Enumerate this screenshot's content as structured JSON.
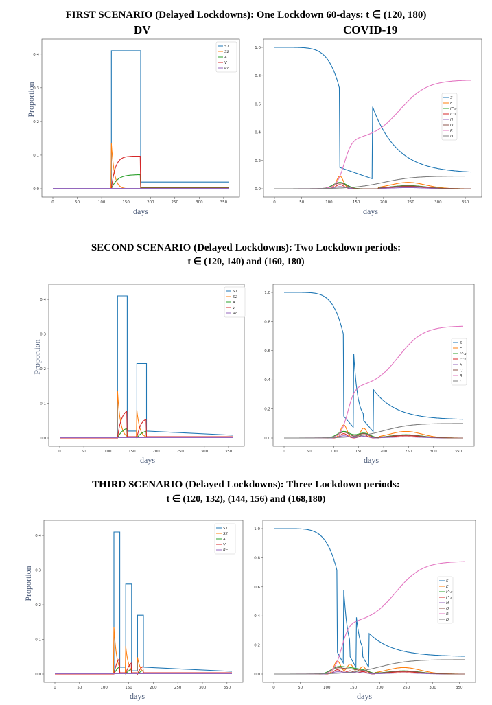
{
  "headings": {
    "s1_title": "FIRST SCENARIO (Delayed Lockdowns):  One Lockdown 60-days: t ∈ (120, 180)",
    "s1_left": "DV",
    "s1_right": "COVID-19",
    "s2_line1": "SECOND SCENARIO (Delayed Lockdowns): Two Lockdown periods:",
    "s2_line2": "t ∈ (120, 140) and (160, 180)",
    "s3_line1": "THIRD SCENARIO (Delayed Lockdowns): Three Lockdown periods:",
    "s3_line2": "t ∈ (120, 132), (144, 156) and (168,180)"
  },
  "colors": {
    "blue": "#1f77b4",
    "orange": "#ff7f0e",
    "green": "#2ca02c",
    "red": "#d62728",
    "purple": "#9467bd",
    "brown": "#8c564b",
    "pink": "#e377c2",
    "gray": "#7f7f7f"
  },
  "chart_data": [
    {
      "id": "s1_dv",
      "type": "line",
      "title": "DV",
      "xlabel": "days",
      "ylabel": "Proportion",
      "xlim": [
        0,
        360
      ],
      "ylim": [
        0,
        0.42
      ],
      "xticks": [
        0,
        50,
        100,
        150,
        200,
        250,
        300,
        350
      ],
      "yticks": [
        0.0,
        0.1,
        0.2,
        0.3,
        0.4
      ],
      "legend": [
        "S1",
        "S2",
        "A",
        "V",
        "Rc"
      ],
      "legend_position": "top-right",
      "lockdowns": [
        [
          120,
          180
        ]
      ],
      "levels": {
        "S1_lock": 0.41,
        "S1_free": 0.02,
        "S2_peak": 0.135,
        "A_max": 0.042,
        "V_max": 0.097,
        "post": 0.004
      }
    },
    {
      "id": "s1_covid",
      "type": "line",
      "title": "COVID-19",
      "xlabel": "days",
      "ylabel": "",
      "xlim": [
        0,
        360
      ],
      "ylim": [
        0,
        1.0
      ],
      "xticks": [
        0,
        50,
        100,
        150,
        200,
        250,
        300,
        350
      ],
      "yticks": [
        0.0,
        0.2,
        0.4,
        0.6,
        0.8,
        1.0
      ],
      "legend": [
        "S",
        "E",
        "I^a",
        "I^s",
        "H",
        "Q",
        "R",
        "D"
      ],
      "legend_position": "center-right",
      "lockdowns": [
        [
          120,
          180
        ]
      ],
      "levels": {
        "S_final": 0.11,
        "R_final": 0.77,
        "D_final": 0.09
      }
    },
    {
      "id": "s2_dv",
      "type": "line",
      "xlabel": "days",
      "ylabel": "Proportion",
      "xlim": [
        0,
        360
      ],
      "ylim": [
        0,
        0.42
      ],
      "xticks": [
        0,
        50,
        100,
        150,
        200,
        250,
        300,
        350
      ],
      "yticks": [
        0.0,
        0.1,
        0.2,
        0.3,
        0.4
      ],
      "legend": [
        "S1",
        "S2",
        "A",
        "V",
        "Rc"
      ],
      "legend_position": "top-right",
      "lockdowns": [
        [
          120,
          140
        ],
        [
          160,
          180
        ]
      ],
      "s1_lock_levels": [
        0.41,
        0.215
      ]
    },
    {
      "id": "s2_covid",
      "type": "line",
      "xlabel": "days",
      "ylabel": "",
      "xlim": [
        0,
        360
      ],
      "ylim": [
        0,
        1.0
      ],
      "xticks": [
        0,
        50,
        100,
        150,
        200,
        250,
        300,
        350
      ],
      "yticks": [
        0.0,
        0.2,
        0.4,
        0.6,
        0.8,
        1.0
      ],
      "legend": [
        "S",
        "E",
        "I^a",
        "I^s",
        "H",
        "Q",
        "R",
        "D"
      ],
      "legend_position": "center-right",
      "lockdowns": [
        [
          120,
          140
        ],
        [
          160,
          180
        ]
      ],
      "levels": {
        "S_final": 0.125,
        "R_final": 0.77,
        "D_final": 0.1
      }
    },
    {
      "id": "s3_dv",
      "type": "line",
      "xlabel": "days",
      "ylabel": "Proportion",
      "xlim": [
        0,
        360
      ],
      "ylim": [
        0,
        0.42
      ],
      "xticks": [
        0,
        50,
        100,
        150,
        200,
        250,
        300,
        350
      ],
      "yticks": [
        0.0,
        0.1,
        0.2,
        0.3,
        0.4
      ],
      "legend": [
        "S1",
        "S2",
        "A",
        "V",
        "Rc"
      ],
      "legend_position": "top-right",
      "lockdowns": [
        [
          120,
          132
        ],
        [
          144,
          156
        ],
        [
          168,
          180
        ]
      ],
      "s1_lock_levels": [
        0.41,
        0.26,
        0.17
      ]
    },
    {
      "id": "s3_covid",
      "type": "line",
      "xlabel": "days",
      "ylabel": "",
      "xlim": [
        0,
        360
      ],
      "ylim": [
        0,
        1.0
      ],
      "xticks": [
        0,
        50,
        100,
        150,
        200,
        250,
        300,
        350
      ],
      "yticks": [
        0.0,
        0.2,
        0.4,
        0.6,
        0.8,
        1.0
      ],
      "legend": [
        "S",
        "E",
        "I^a",
        "I^s",
        "H",
        "Q",
        "R",
        "D"
      ],
      "legend_position": "center-right",
      "lockdowns": [
        [
          120,
          132
        ],
        [
          144,
          156
        ],
        [
          168,
          180
        ]
      ],
      "levels": {
        "S_final": 0.12,
        "R_final": 0.775,
        "D_final": 0.1
      }
    }
  ]
}
